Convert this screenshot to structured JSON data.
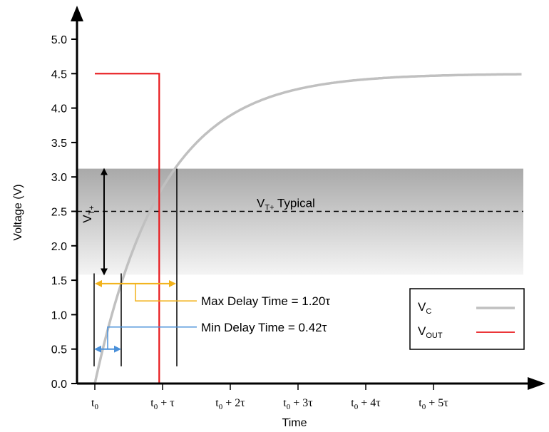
{
  "chart_data": {
    "type": "line",
    "xlabel": "Time",
    "ylabel": "Voltage (V)",
    "ylim": [
      0,
      5
    ],
    "xlim": [
      0,
      6.4
    ],
    "x_ticks": [
      {
        "value": 0,
        "base": "t",
        "sub": "0",
        "suffix": ""
      },
      {
        "value": 1,
        "base": "t",
        "sub": "0",
        "suffix": " + τ"
      },
      {
        "value": 2,
        "base": "t",
        "sub": "0",
        "suffix": " + 2τ"
      },
      {
        "value": 3,
        "base": "t",
        "sub": "0",
        "suffix": " + 3τ"
      },
      {
        "value": 4,
        "base": "t",
        "sub": "0",
        "suffix": " + 4τ"
      },
      {
        "value": 5,
        "base": "t",
        "sub": "0",
        "suffix": " + 5τ"
      }
    ],
    "y_ticks": [
      "0.0",
      "0.5",
      "1.0",
      "1.5",
      "2.0",
      "2.5",
      "3.0",
      "3.5",
      "4.0",
      "4.5",
      "5.0"
    ],
    "series": [
      {
        "key": "vc",
        "name": "V",
        "name_sub": "C",
        "color": "#c0c0c0",
        "kind": "rc_charge",
        "vmax": 4.5,
        "tau": 1,
        "t_start": -0.25,
        "t_end": 6.3
      },
      {
        "key": "vout",
        "name": "V",
        "name_sub": "OUT",
        "color": "#e8191d",
        "kind": "step",
        "x": [
          0,
          0.95,
          0.95,
          6.3
        ],
        "values": [
          4.5,
          4.5,
          0,
          0
        ]
      }
    ],
    "bands": [
      {
        "key": "vt-plus-range",
        "y_low": 1.58,
        "y_high": 3.12,
        "color_top": "#a9a9a9",
        "color_bottom": "#f4f4f4"
      }
    ],
    "reference_lines": [
      {
        "key": "vt-typical",
        "y": 2.5,
        "style": "dashed",
        "label_base": "V",
        "label_sub": "T+",
        "label_suffix": " Typical"
      }
    ],
    "annotations": {
      "vt_plus_label": {
        "base": "V",
        "sub": "T+"
      },
      "max_delay": {
        "label": "Max Delay Time = 1.20τ",
        "value": 1.2
      },
      "min_delay": {
        "label": "Min Delay Time = 0.42τ",
        "value": 0.42
      }
    },
    "legend_position": "bottom-right",
    "colors": {
      "max_delay": "#f2b21b",
      "min_delay": "#4a90d9",
      "axis": "#000000"
    }
  }
}
